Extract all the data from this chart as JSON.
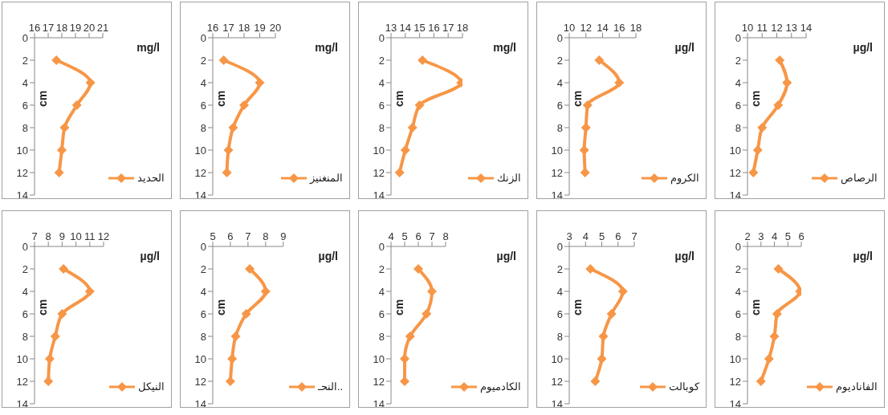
{
  "chart_data": [
    {
      "type": "line",
      "xlabel": "mg/l",
      "ylabel": "cm",
      "xlim": [
        16,
        21
      ],
      "xticks": [
        16,
        17,
        18,
        19,
        20,
        21
      ],
      "ylim": [
        14,
        0
      ],
      "yticks": [
        0,
        2,
        4,
        6,
        8,
        10,
        12,
        14
      ],
      "legend": "bottom right",
      "marker": "diamond",
      "line_style": "solid",
      "grid": false,
      "series": [
        {
          "name": "الحديد",
          "color": "#f79646",
          "x": [
            17.6,
            20.1,
            19.1,
            18.2,
            18.0,
            17.8
          ],
          "values": [
            2,
            4,
            6,
            8,
            10,
            12
          ]
        }
      ]
    },
    {
      "type": "line",
      "xlabel": "mg/l",
      "ylabel": "cm",
      "xlim": [
        16,
        20
      ],
      "xticks": [
        16,
        17,
        18,
        19,
        20
      ],
      "ylim": [
        14,
        0
      ],
      "yticks": [
        0,
        2,
        4,
        6,
        8,
        10,
        12,
        14
      ],
      "legend": "bottom right",
      "marker": "diamond",
      "line_style": "solid",
      "grid": false,
      "series": [
        {
          "name": "المنغنيز",
          "color": "#f79646",
          "x": [
            16.7,
            19.0,
            18.0,
            17.3,
            17.0,
            16.9
          ],
          "values": [
            2,
            4,
            6,
            8,
            10,
            12
          ]
        }
      ]
    },
    {
      "type": "line",
      "xlabel": "mg/l",
      "ylabel": "cm",
      "xlim": [
        13,
        18
      ],
      "xticks": [
        13,
        14,
        15,
        16,
        17,
        18
      ],
      "ylim": [
        14,
        0
      ],
      "yticks": [
        0,
        2,
        4,
        6,
        8,
        10,
        12,
        14
      ],
      "legend": "bottom right",
      "marker": "diamond",
      "line_style": "solid",
      "grid": false,
      "series": [
        {
          "name": "الزنك",
          "color": "#f79646",
          "x": [
            15.2,
            17.9,
            15.0,
            14.5,
            14.0,
            13.6
          ],
          "values": [
            2,
            4,
            6,
            8,
            10,
            12
          ]
        }
      ]
    },
    {
      "type": "line",
      "xlabel": "µg/l",
      "ylabel": "cm",
      "xlim": [
        10,
        18
      ],
      "xticks": [
        10,
        12,
        14,
        16,
        18
      ],
      "ylim": [
        14,
        0
      ],
      "yticks": [
        0,
        2,
        4,
        6,
        8,
        10,
        12,
        14
      ],
      "legend": "bottom right",
      "marker": "diamond",
      "line_style": "solid",
      "grid": false,
      "series": [
        {
          "name": "الكروم",
          "color": "#f79646",
          "x": [
            13.6,
            16.0,
            12.2,
            12.0,
            11.8,
            11.9
          ],
          "values": [
            2,
            4,
            6,
            8,
            10,
            12
          ]
        }
      ]
    },
    {
      "type": "line",
      "xlabel": "µg/l",
      "ylabel": "cm",
      "xlim": [
        10,
        14
      ],
      "xticks": [
        10,
        11,
        12,
        13,
        14
      ],
      "ylim": [
        14,
        0
      ],
      "yticks": [
        0,
        2,
        4,
        6,
        8,
        10,
        12,
        14
      ],
      "legend": "bottom right",
      "marker": "diamond",
      "line_style": "solid",
      "grid": false,
      "series": [
        {
          "name": "الرصاص",
          "color": "#f79646",
          "x": [
            12.2,
            12.7,
            12.1,
            11.0,
            10.7,
            10.4
          ],
          "values": [
            2,
            4,
            6,
            8,
            10,
            12
          ]
        }
      ]
    },
    {
      "type": "line",
      "xlabel": "µg/l",
      "ylabel": "cm",
      "xlim": [
        7,
        12
      ],
      "xticks": [
        7,
        8,
        9,
        10,
        11,
        12
      ],
      "ylim": [
        14,
        0
      ],
      "yticks": [
        0,
        2,
        4,
        6,
        8,
        10,
        12,
        14
      ],
      "legend": "bottom right",
      "marker": "diamond",
      "line_style": "solid",
      "grid": false,
      "series": [
        {
          "name": "النيكل",
          "color": "#f79646",
          "x": [
            9.1,
            11.0,
            9.0,
            8.5,
            8.1,
            8.0
          ],
          "values": [
            2,
            4,
            6,
            8,
            10,
            12
          ]
        }
      ]
    },
    {
      "type": "line",
      "xlabel": "µg/l",
      "ylabel": "cm",
      "xlim": [
        5,
        9
      ],
      "xticks": [
        5,
        6,
        7,
        8,
        9
      ],
      "ylim": [
        14,
        0
      ],
      "yticks": [
        0,
        2,
        4,
        6,
        8,
        10,
        12,
        14
      ],
      "legend": "bottom right",
      "marker": "diamond",
      "line_style": "solid",
      "grid": false,
      "series": [
        {
          "name": "النحـ..",
          "color": "#f79646",
          "x": [
            7.1,
            8.0,
            6.9,
            6.3,
            6.1,
            6.0
          ],
          "values": [
            2,
            4,
            6,
            8,
            10,
            12
          ]
        }
      ]
    },
    {
      "type": "line",
      "xlabel": "µg/l",
      "ylabel": "cm",
      "xlim": [
        4,
        8
      ],
      "xticks": [
        4,
        5,
        6,
        7,
        8
      ],
      "ylim": [
        14,
        0
      ],
      "yticks": [
        0,
        2,
        4,
        6,
        8,
        10,
        12,
        14
      ],
      "legend": "bottom right",
      "marker": "diamond",
      "line_style": "solid",
      "grid": false,
      "series": [
        {
          "name": "الكادميوم",
          "color": "#f79646",
          "x": [
            6.0,
            7.0,
            6.6,
            5.4,
            5.0,
            5.0
          ],
          "values": [
            2,
            4,
            6,
            8,
            10,
            12
          ]
        }
      ]
    },
    {
      "type": "line",
      "xlabel": "µg/l",
      "ylabel": "cm",
      "xlim": [
        3,
        7
      ],
      "xticks": [
        3,
        4,
        5,
        6,
        7
      ],
      "ylim": [
        14,
        0
      ],
      "yticks": [
        0,
        2,
        4,
        6,
        8,
        10,
        12,
        14
      ],
      "legend": "bottom right",
      "marker": "diamond",
      "line_style": "solid",
      "grid": false,
      "series": [
        {
          "name": "كوبالت",
          "color": "#f79646",
          "x": [
            4.3,
            6.3,
            5.6,
            5.1,
            5.0,
            4.6
          ],
          "values": [
            2,
            4,
            6,
            8,
            10,
            12
          ]
        }
      ]
    },
    {
      "type": "line",
      "xlabel": "µg/l",
      "ylabel": "cm",
      "xlim": [
        2,
        6
      ],
      "xticks": [
        2,
        3,
        4,
        5,
        6
      ],
      "ylim": [
        14,
        0
      ],
      "yticks": [
        0,
        2,
        4,
        6,
        8,
        10,
        12,
        14
      ],
      "legend": "bottom right",
      "marker": "diamond",
      "line_style": "solid",
      "grid": false,
      "series": [
        {
          "name": "الفاناديوم",
          "color": "#f79646",
          "x": [
            4.3,
            5.9,
            4.2,
            4.0,
            3.6,
            3.0
          ],
          "values": [
            2,
            4,
            6,
            8,
            10,
            12
          ]
        }
      ]
    }
  ]
}
